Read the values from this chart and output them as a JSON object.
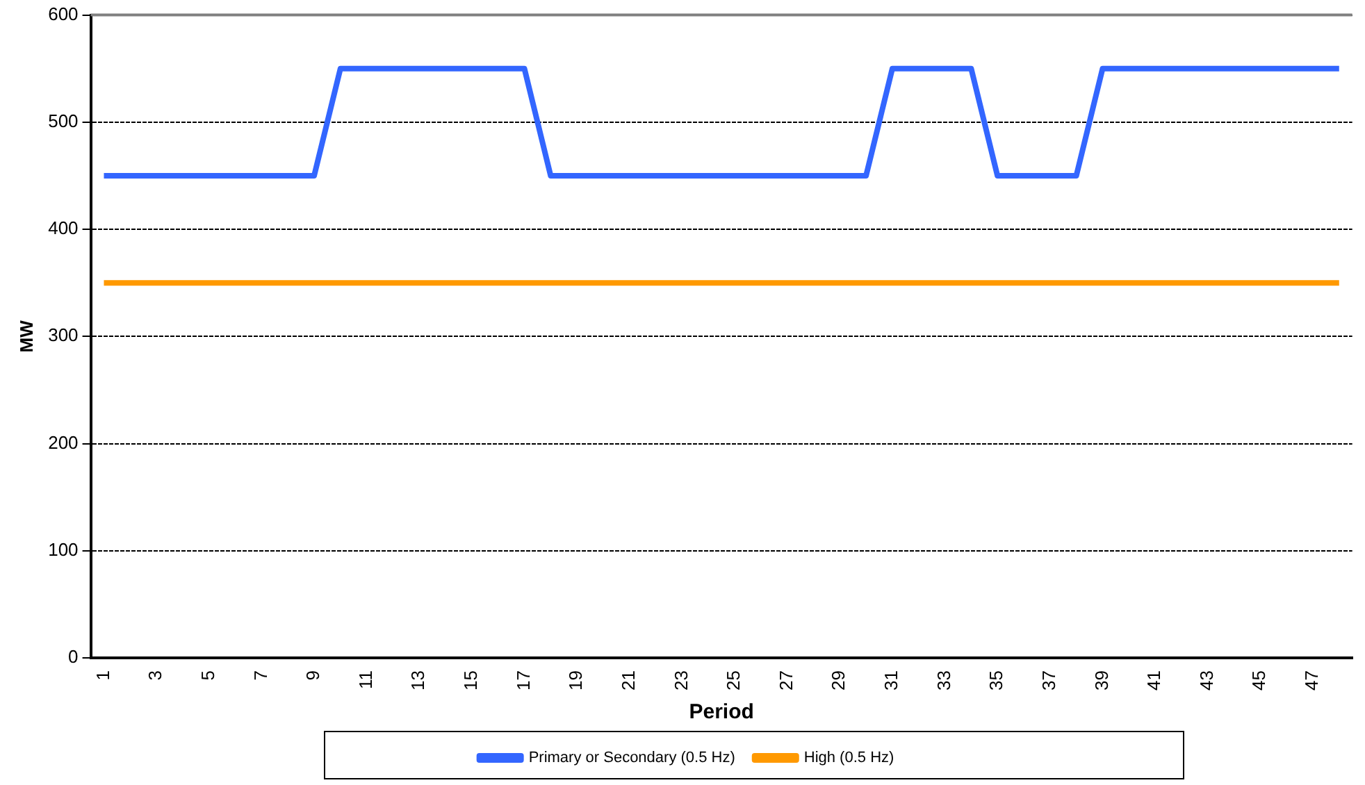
{
  "chart_data": {
    "type": "line",
    "xlabel": "Period",
    "ylabel": "MW",
    "categories": [
      "1",
      null,
      "3",
      null,
      "5",
      null,
      "7",
      null,
      "9",
      null,
      "11",
      null,
      "13",
      null,
      "15",
      null,
      "17",
      null,
      "19",
      null,
      "21",
      null,
      "23",
      null,
      "25",
      null,
      "27",
      null,
      "29",
      null,
      "31",
      null,
      "33",
      null,
      "35",
      null,
      "37",
      null,
      "39",
      null,
      "41",
      null,
      "43",
      null,
      "45",
      null,
      "47",
      null
    ],
    "series": [
      {
        "name": "Primary or Secondary (0.5 Hz)",
        "color": "#3366ff",
        "values": [
          450,
          450,
          450,
          450,
          450,
          450,
          450,
          450,
          450,
          550,
          550,
          550,
          550,
          550,
          550,
          550,
          550,
          450,
          450,
          450,
          450,
          450,
          450,
          450,
          450,
          450,
          450,
          450,
          450,
          450,
          550,
          550,
          550,
          550,
          450,
          450,
          450,
          450,
          550,
          550,
          550,
          550,
          550,
          550,
          550,
          550,
          550,
          550
        ]
      },
      {
        "name": "High (0.5 Hz)",
        "color": "#ff9900",
        "values": [
          350,
          350,
          350,
          350,
          350,
          350,
          350,
          350,
          350,
          350,
          350,
          350,
          350,
          350,
          350,
          350,
          350,
          350,
          350,
          350,
          350,
          350,
          350,
          350,
          350,
          350,
          350,
          350,
          350,
          350,
          350,
          350,
          350,
          350,
          350,
          350,
          350,
          350,
          350,
          350,
          350,
          350,
          350,
          350,
          350,
          350,
          350,
          350
        ]
      }
    ],
    "ylim": [
      0,
      600
    ],
    "yticks": [
      0,
      100,
      200,
      300,
      400,
      500,
      600
    ],
    "grid": "y",
    "legend": "bottom",
    "marker": "none",
    "line_style": "solid"
  }
}
